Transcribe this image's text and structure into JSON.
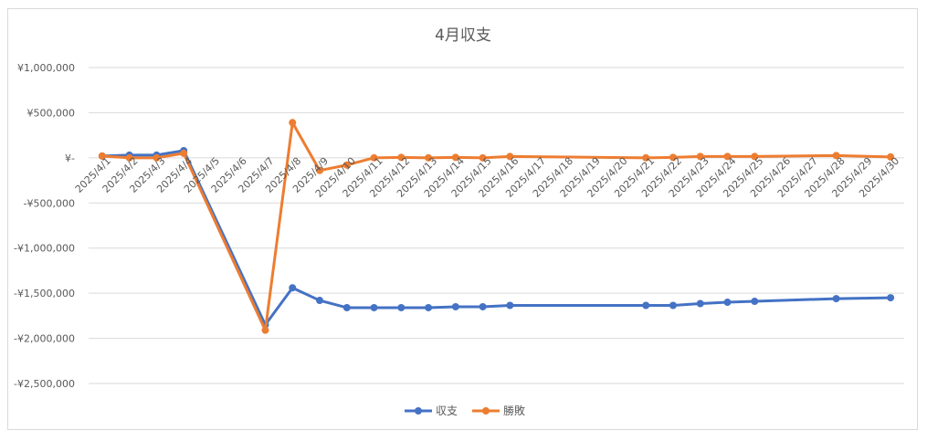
{
  "chart_data": {
    "type": "line",
    "title": "4月収支",
    "xlabel": "",
    "ylabel": "",
    "ylim": [
      -2500000,
      1000000
    ],
    "yticks": [
      1000000,
      500000,
      0,
      -500000,
      -1000000,
      -1500000,
      -2000000,
      -2500000
    ],
    "ytick_labels": [
      "¥1,000,000",
      "¥500,000",
      "¥-",
      "-¥500,000",
      "-¥1,000,000",
      "-¥1,500,000",
      "-¥2,000,000",
      "-¥2,500,000"
    ],
    "categories": [
      "2025/4/1",
      "2025/4/2",
      "2025/4/3",
      "2025/4/4",
      "2025/4/5",
      "2025/4/6",
      "2025/4/7",
      "2025/4/8",
      "2025/4/9",
      "2025/4/10",
      "2025/4/11",
      "2025/4/12",
      "2025/4/13",
      "2025/4/14",
      "2025/4/15",
      "2025/4/16",
      "2025/4/17",
      "2025/4/18",
      "2025/4/19",
      "2025/4/20",
      "2025/4/21",
      "2025/4/22",
      "2025/4/23",
      "2025/4/24",
      "2025/4/25",
      "2025/4/26",
      "2025/4/27",
      "2025/4/28",
      "2025/4/29",
      "2025/4/30"
    ],
    "grid": true,
    "legend": "bottom",
    "series": [
      {
        "name": "収支",
        "color": "#4472c4",
        "values": [
          20000,
          30000,
          30000,
          80000,
          null,
          null,
          -1850000,
          -1440000,
          -1580000,
          -1660000,
          -1660000,
          -1660000,
          -1660000,
          -1650000,
          -1650000,
          -1635000,
          null,
          null,
          null,
          null,
          -1635000,
          -1635000,
          -1615000,
          -1600000,
          -1590000,
          null,
          null,
          -1560000,
          null,
          -1550000
        ]
      },
      {
        "name": "勝敗",
        "color": "#ed7d31",
        "values": [
          20000,
          0,
          0,
          50000,
          null,
          null,
          -1910000,
          390000,
          -140000,
          -80000,
          0,
          5000,
          0,
          5000,
          0,
          15000,
          null,
          null,
          null,
          null,
          0,
          5000,
          15000,
          15000,
          15000,
          null,
          null,
          25000,
          null,
          10000
        ]
      }
    ]
  }
}
